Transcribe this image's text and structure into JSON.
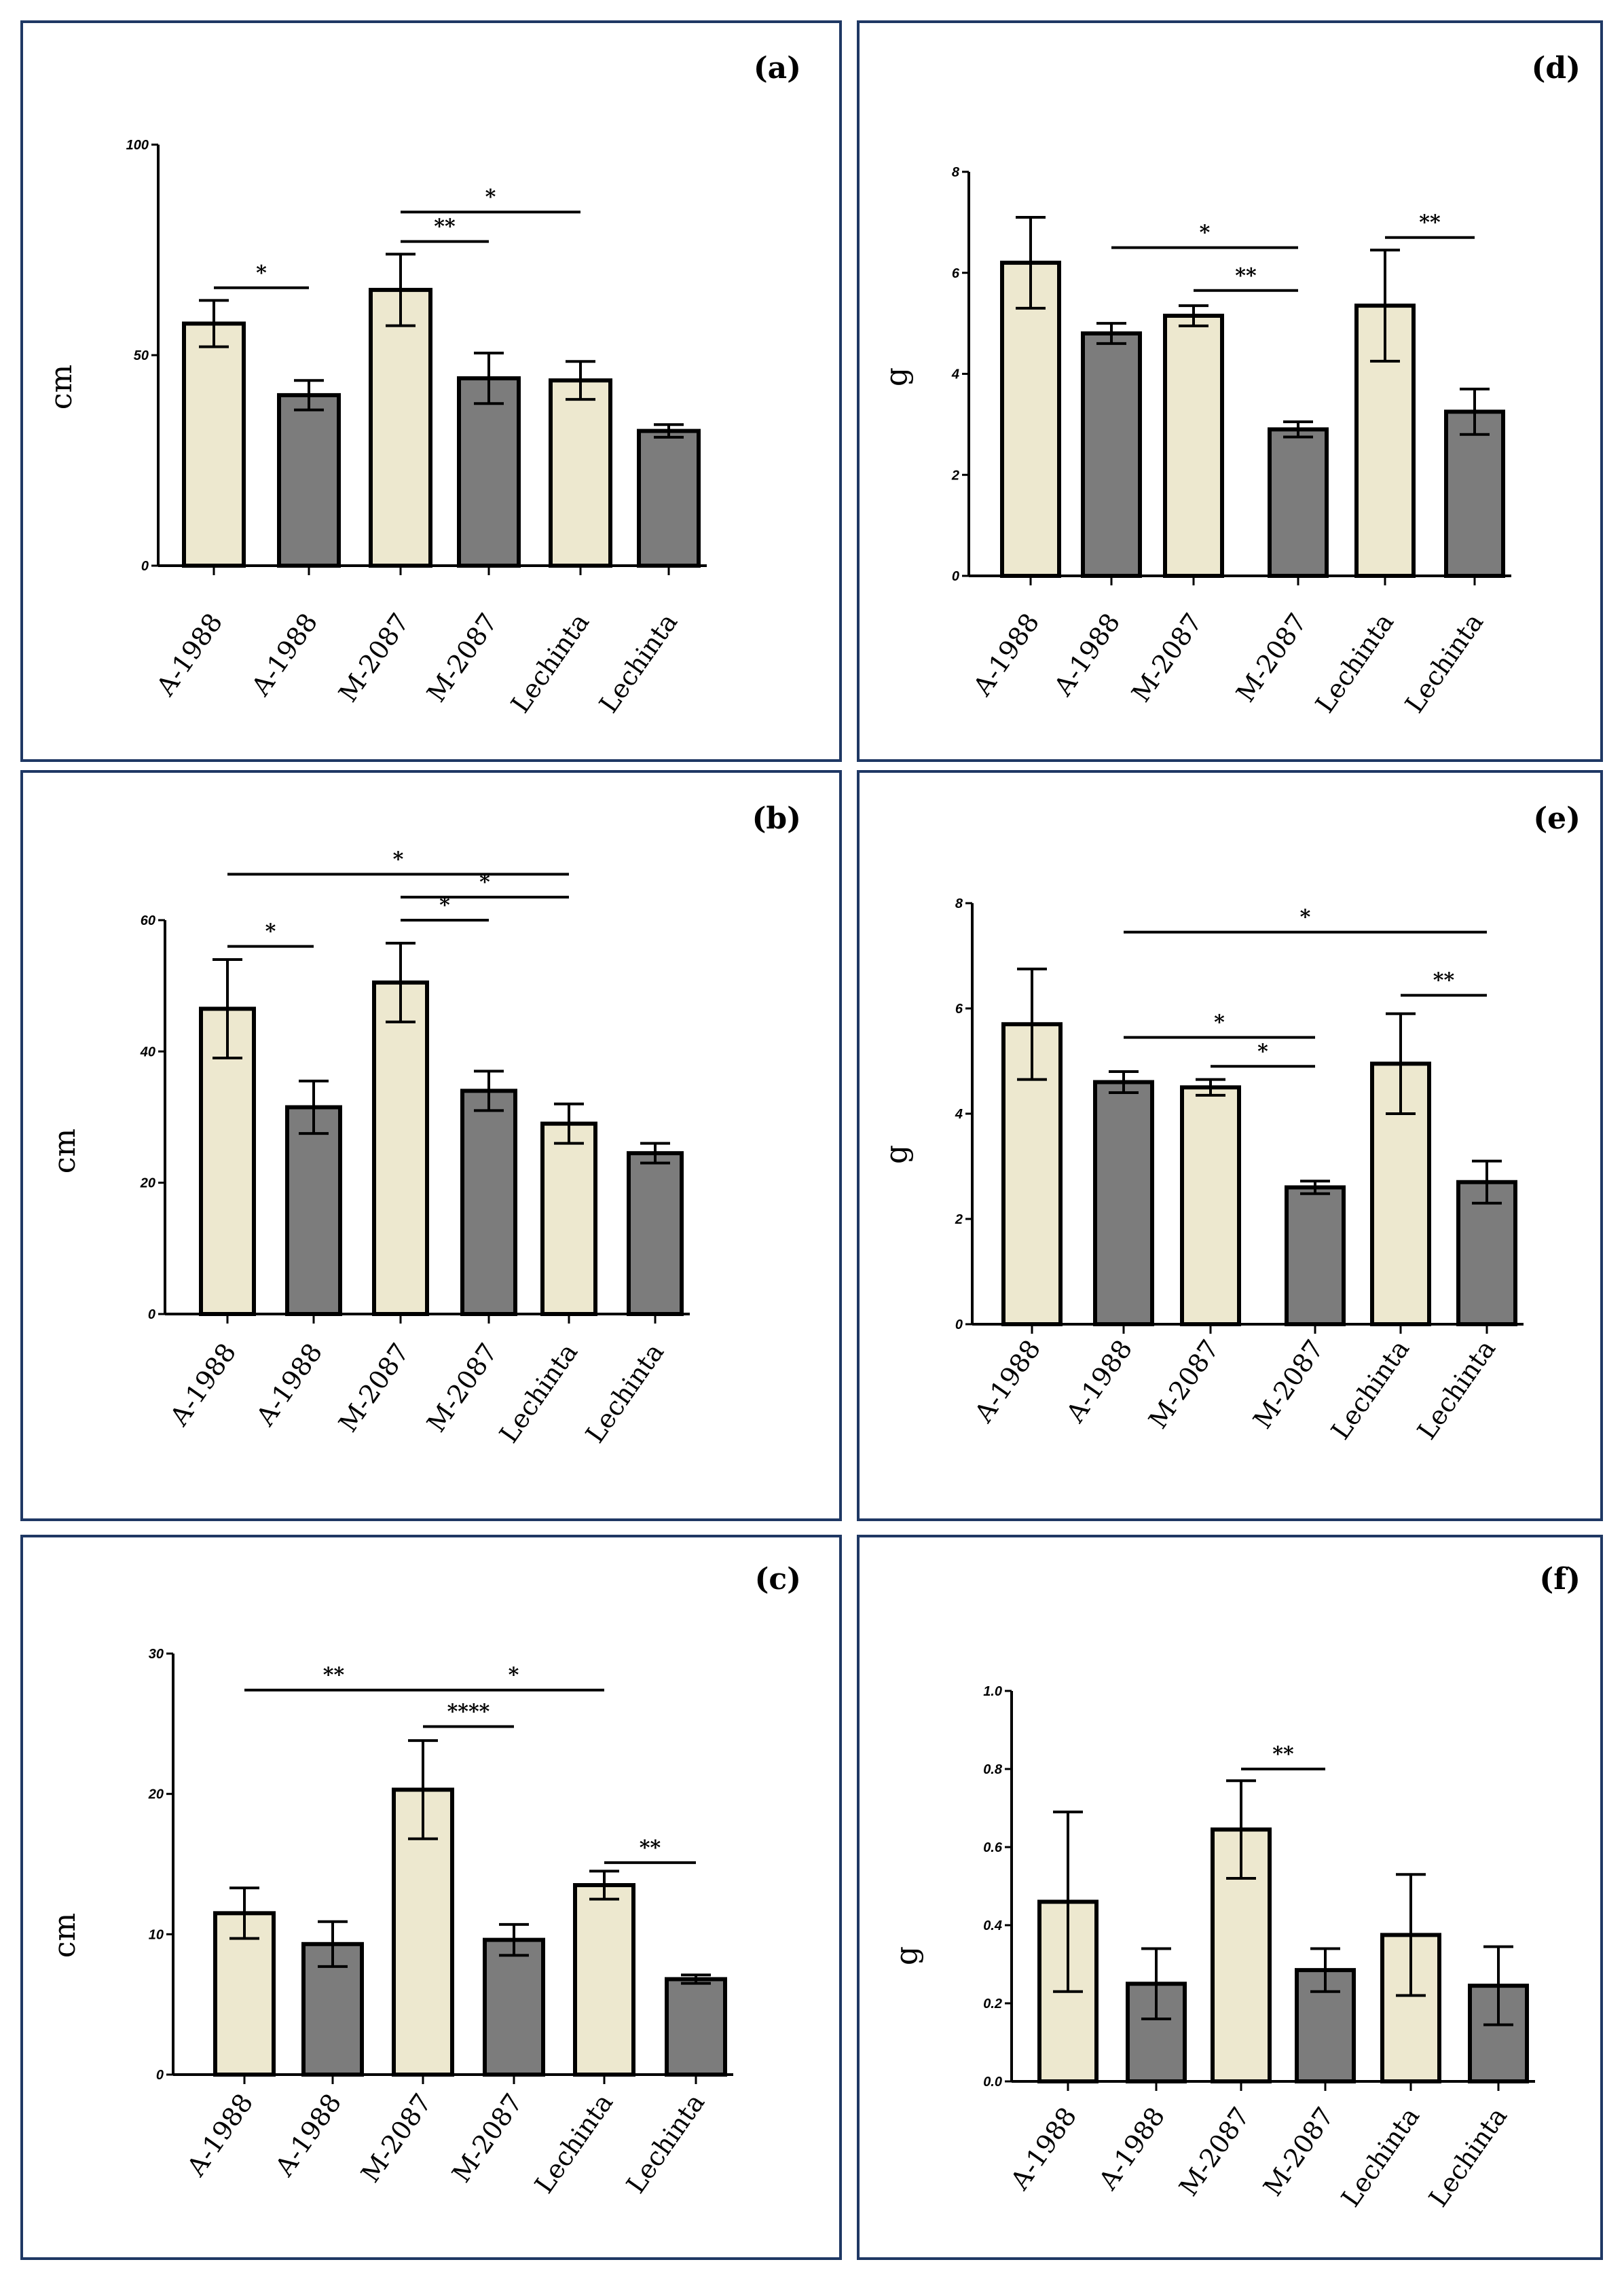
{
  "colors": {
    "light_bar": "#EDE8CF",
    "dark_bar": "#7C7C7C",
    "frame": "#1F3864"
  },
  "chart_data": [
    {
      "panel": "(a)",
      "type": "bar",
      "ylabel": "cm",
      "ylim": [
        0,
        100
      ],
      "yticks": [
        0,
        50,
        100
      ],
      "categories": [
        "A-1988",
        "A-1988",
        "M-2087",
        "M-2087",
        "Lechinta",
        "Lechinta"
      ],
      "bar_shades": [
        "light",
        "dark",
        "light",
        "dark",
        "light",
        "dark"
      ],
      "values": [
        57.5,
        40.5,
        65.5,
        44.5,
        44,
        32
      ],
      "errors": [
        5.5,
        3.5,
        8.5,
        6,
        4.5,
        1.5
      ],
      "significance": [
        {
          "from": 0,
          "to": 1,
          "label": "*",
          "y": 66
        },
        {
          "from": 2,
          "to": 3,
          "label": "**",
          "y": 77
        },
        {
          "from": 2,
          "to": 4,
          "label": "*",
          "y": 84
        }
      ]
    },
    {
      "panel": "(b)",
      "type": "bar",
      "ylabel": "cm",
      "ylim": [
        0,
        60
      ],
      "yticks": [
        0,
        20,
        40,
        60
      ],
      "categories": [
        "A-1988",
        "A-1988",
        "M-2087",
        "M-2087",
        "Lechinta",
        "Lechinta"
      ],
      "bar_shades": [
        "light",
        "dark",
        "light",
        "dark",
        "light",
        "dark"
      ],
      "values": [
        46.5,
        31.5,
        50.5,
        34,
        29,
        24.5
      ],
      "errors": [
        7.5,
        4,
        6,
        3,
        3,
        1.5
      ],
      "significance": [
        {
          "from": 0,
          "to": 1,
          "label": "*",
          "y": 56
        },
        {
          "from": 2,
          "to": 3,
          "label": "*",
          "y": 60
        },
        {
          "from": 2,
          "to": 4,
          "label": "*",
          "y": 63.5
        },
        {
          "from": 0,
          "to": 4,
          "label": "*",
          "y": 67
        }
      ]
    },
    {
      "panel": "(c)",
      "type": "bar",
      "ylabel": "cm",
      "ylim": [
        0,
        30
      ],
      "yticks": [
        0,
        10,
        20,
        30
      ],
      "categories": [
        "A-1988",
        "A-1988",
        "M-2087",
        "M-2087",
        "Lechinta",
        "Lechinta"
      ],
      "bar_shades": [
        "light",
        "dark",
        "light",
        "dark",
        "light",
        "dark"
      ],
      "values": [
        11.5,
        9.3,
        20.3,
        9.6,
        13.5,
        6.8
      ],
      "errors": [
        1.8,
        1.6,
        3.5,
        1.1,
        1,
        0.3
      ],
      "significance": [
        {
          "from": 2,
          "to": 3,
          "label": "****",
          "y": 24.8
        },
        {
          "from": 0,
          "to": 2,
          "label": "**",
          "y": 27.4
        },
        {
          "from": 2,
          "to": 4,
          "label": "*",
          "y": 27.4
        },
        {
          "from": 4,
          "to": 5,
          "label": "**",
          "y": 15.1
        }
      ]
    },
    {
      "panel": "(d)",
      "type": "bar",
      "ylabel": "g",
      "ylim": [
        0,
        8
      ],
      "yticks": [
        0,
        2,
        4,
        6,
        8
      ],
      "categories": [
        "A-1988",
        "A-1988",
        "M-2087",
        "M-2087",
        "Lechinta",
        "Lechinta"
      ],
      "bar_shades": [
        "light",
        "dark",
        "light",
        "dark",
        "light",
        "dark"
      ],
      "values": [
        6.2,
        4.8,
        5.15,
        2.9,
        5.35,
        3.25
      ],
      "errors": [
        0.9,
        0.2,
        0.2,
        0.15,
        1.1,
        0.45
      ],
      "significance": [
        {
          "from": 2,
          "to": 3,
          "label": "**",
          "y": 5.65
        },
        {
          "from": 1,
          "to": 3,
          "label": "*",
          "y": 6.5
        },
        {
          "from": 4,
          "to": 5,
          "label": "**",
          "y": 6.7
        }
      ]
    },
    {
      "panel": "(e)",
      "type": "bar",
      "ylabel": "g",
      "ylim": [
        0,
        8
      ],
      "yticks": [
        0,
        2,
        4,
        6,
        8
      ],
      "categories": [
        "A-1988",
        "A-1988",
        "M-2087",
        "M-2087",
        "Lechinta",
        "Lechinta"
      ],
      "bar_shades": [
        "light",
        "dark",
        "light",
        "dark",
        "light",
        "dark"
      ],
      "values": [
        5.7,
        4.6,
        4.5,
        2.6,
        4.95,
        2.7
      ],
      "errors": [
        1.05,
        0.2,
        0.15,
        0.12,
        0.95,
        0.4
      ],
      "significance": [
        {
          "from": 2,
          "to": 3,
          "label": "*",
          "y": 4.9
        },
        {
          "from": 1,
          "to": 3,
          "label": "*",
          "y": 5.45
        },
        {
          "from": 4,
          "to": 5,
          "label": "**",
          "y": 6.25
        },
        {
          "from": 1,
          "to": 5,
          "label": "*",
          "y": 7.45
        }
      ]
    },
    {
      "panel": "(f)",
      "type": "bar",
      "ylabel": "g",
      "ylim": [
        0,
        1.0
      ],
      "yticks": [
        0.0,
        0.2,
        0.4,
        0.6,
        0.8,
        1.0
      ],
      "categories": [
        "A-1988",
        "A-1988",
        "M-2087",
        "M-2087",
        "Lechinta",
        "Lechinta"
      ],
      "bar_shades": [
        "light",
        "dark",
        "light",
        "dark",
        "light",
        "dark"
      ],
      "values": [
        0.46,
        0.25,
        0.645,
        0.285,
        0.375,
        0.245
      ],
      "errors": [
        0.23,
        0.09,
        0.125,
        0.055,
        0.155,
        0.1
      ],
      "significance": [
        {
          "from": 2,
          "to": 3,
          "label": "**",
          "y": 0.8
        }
      ]
    }
  ]
}
